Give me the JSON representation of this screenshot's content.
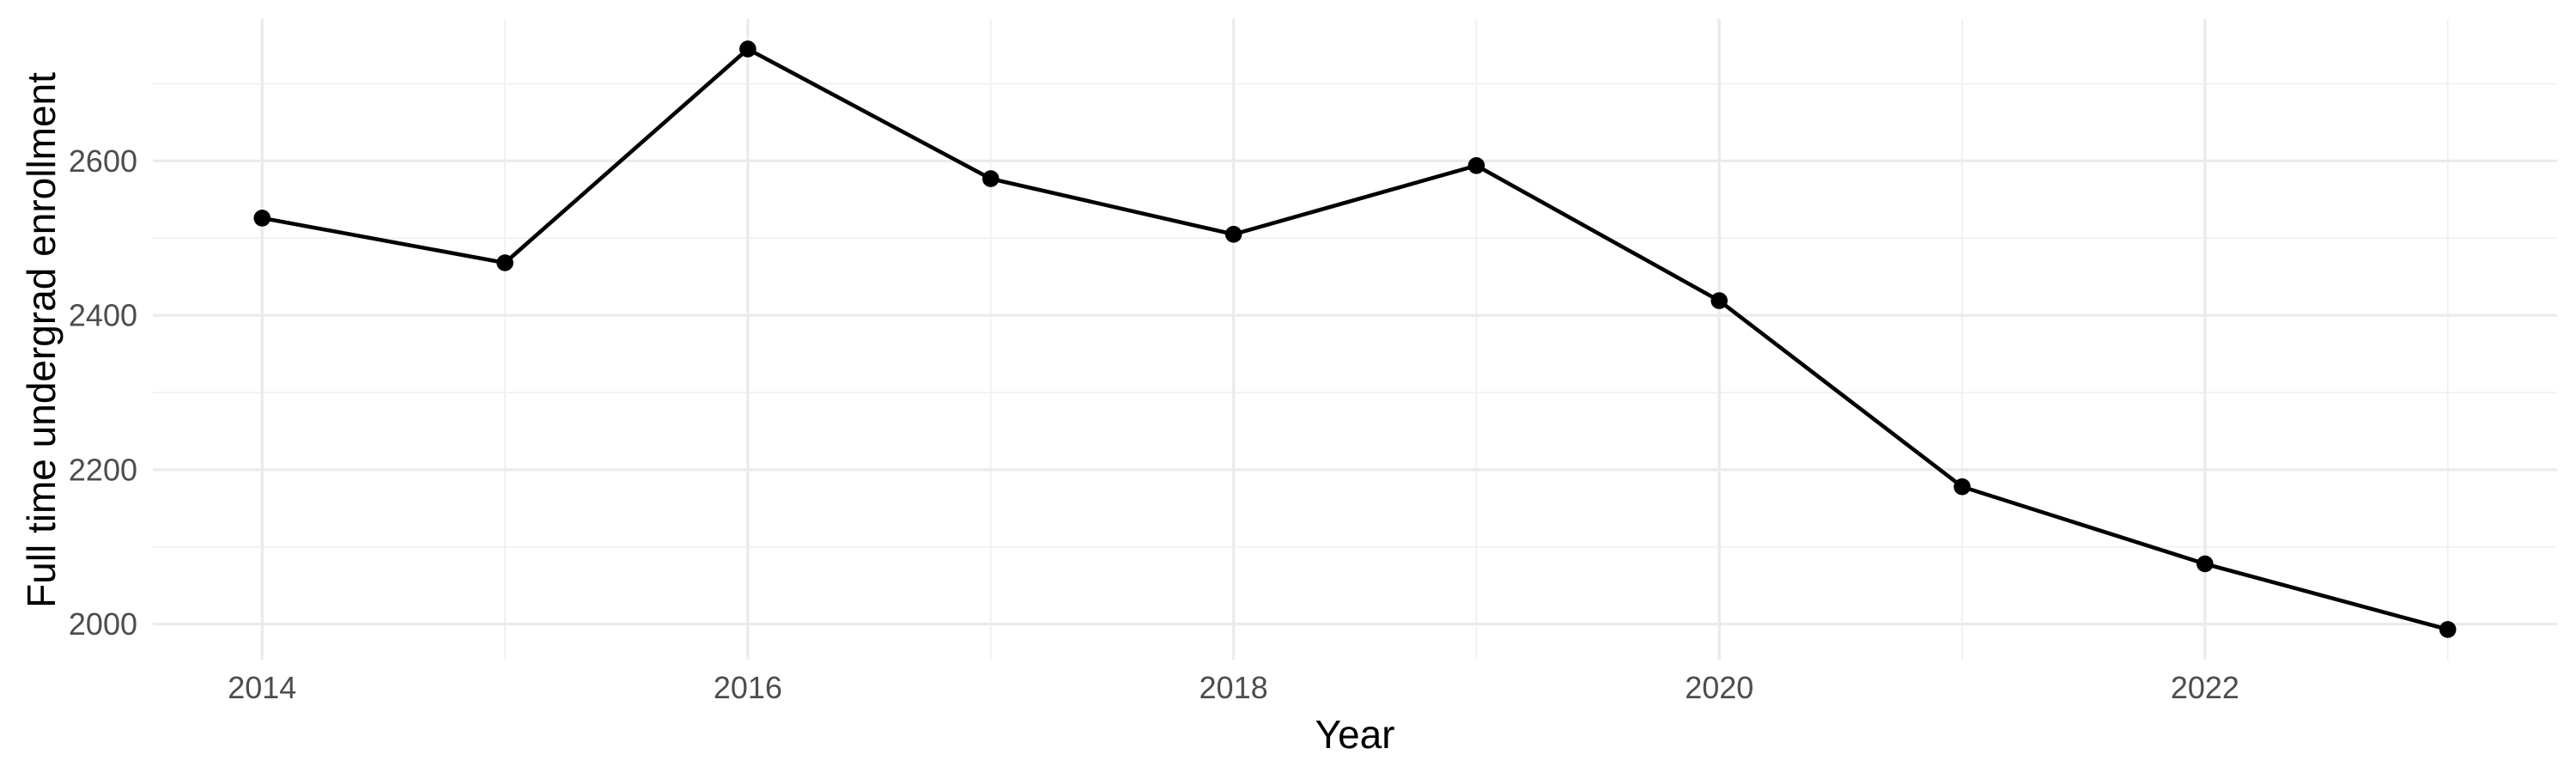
{
  "chart_data": {
    "type": "line",
    "title": "",
    "xlabel": "Year",
    "ylabel": "Full time undergrad enrollment",
    "x": [
      2014,
      2015,
      2016,
      2017,
      2018,
      2019,
      2020,
      2021,
      2022,
      2023
    ],
    "series": [
      {
        "name": "Full time undergrad enrollment",
        "values": [
          2526,
          2468,
          2745,
          2577,
          2505,
          2594,
          2419,
          2178,
          2078,
          1993
        ]
      }
    ],
    "xlim": [
      2013.55,
      2023.45
    ],
    "ylim": [
      1954,
      2784
    ],
    "x_major_ticks": [
      2014,
      2016,
      2018,
      2020,
      2022
    ],
    "x_minor_ticks": [
      2015,
      2017,
      2019,
      2021,
      2023
    ],
    "x_tick_labels": [
      "2014",
      "2016",
      "2018",
      "2020",
      "2022"
    ],
    "y_major_ticks": [
      2000,
      2200,
      2400,
      2600
    ],
    "y_minor_ticks": [
      2100,
      2300,
      2500,
      2700
    ],
    "y_tick_labels": [
      "2000",
      "2200",
      "2400",
      "2600"
    ],
    "grid": true,
    "legend_position": "none",
    "marker": "circle",
    "colors": {
      "line": "#000000",
      "point": "#000000",
      "grid_major": "#ebebeb",
      "grid_minor": "#f0f0f0",
      "axis_text": "#4d4d4d",
      "axis_title": "#000000",
      "background": "#ffffff"
    }
  }
}
